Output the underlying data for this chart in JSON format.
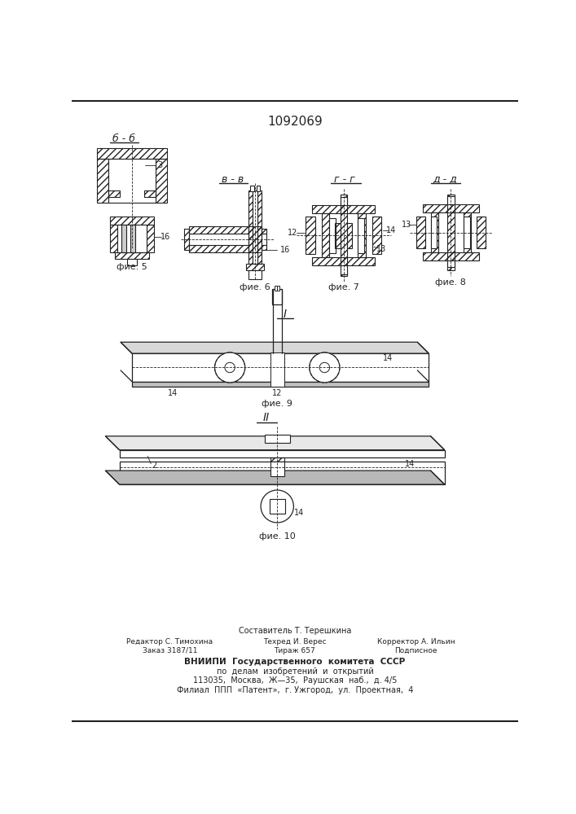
{
  "title": "1092069",
  "bg_color": "#ffffff",
  "lc": "#222222",
  "section_labels": {
    "bb": "б - б",
    "vv": "в - в",
    "gg": "г - г",
    "dd": "д - д"
  },
  "fig_labels": {
    "fig5": "фие. 5",
    "fig6": "фие. 6",
    "fig7": "фие. 7",
    "fig8": "фие. 8",
    "fig9": "фие. 9",
    "fig10": "фие. 10"
  },
  "marker_I": "I",
  "marker_II": "II",
  "num3": "3",
  "num12": "12",
  "num13": "13",
  "num14": "14",
  "num16": "16",
  "num2": "2",
  "footer": [
    "Составитель Т. Терешкина",
    "Редактор С. Тимохина",
    "Техред И. Верес",
    "Корректор А. Ильин",
    "Заказ 3187/11",
    "Тираж 657",
    "Подписное",
    "ВНИИПИ  Государственного  комитета  СССР",
    "по  делам  изобретений  и  открытий",
    "113035,  Москва,  Ж—35,  Раушская  наб.,  д. 4/5",
    "Филиал  ППП  «Патент»,  г. Ужгород,  ул.  Проектная,  4"
  ]
}
